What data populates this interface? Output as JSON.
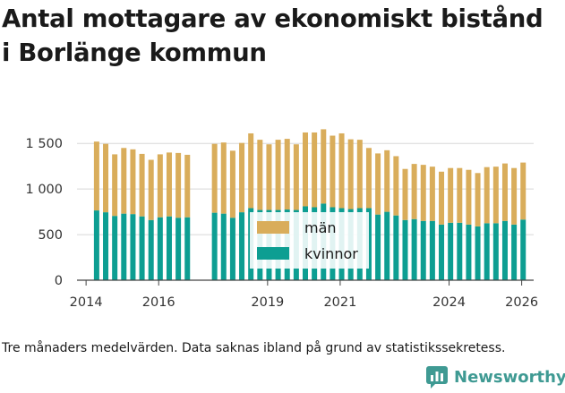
{
  "title_line1": "Antal mottagare av ekonomiskt bistånd",
  "title_line2": "i Borlänge kommun",
  "caption": "Tre månaders medelvärden. Data saknas ibland på grund av statistikssekretess.",
  "brand": {
    "name": "Newsworthy",
    "icon": "newsworthy-logo-icon"
  },
  "colors": {
    "man": "#d9ad5b",
    "kvinnor": "#0d9e92",
    "grid": "#d8d8d8",
    "axis": "#444444",
    "brand": "#3f9a93"
  },
  "chart_data": {
    "type": "bar",
    "stacked": true,
    "title": "Antal mottagare av ekonomiskt bistånd i Borlänge kommun",
    "xlabel": "",
    "ylabel": "",
    "ylim": [
      0,
      1600
    ],
    "xlim": [
      2013.75,
      2026.33
    ],
    "y_ticks": [
      0,
      500,
      1000,
      1500
    ],
    "y_tick_labels": [
      "0",
      "500",
      "1 000",
      "1 500"
    ],
    "x_ticks": [
      2014,
      2016,
      2019,
      2021,
      2024,
      2026
    ],
    "x_tick_labels": [
      "2014",
      "2016",
      "2019",
      "2021",
      "2024",
      "2026"
    ],
    "grid": true,
    "legend": {
      "position": "center-bottom",
      "entries": [
        "män",
        "kvinnor"
      ]
    },
    "x": [
      2014.29,
      2014.54,
      2014.79,
      2015.04,
      2015.29,
      2015.54,
      2015.79,
      2016.04,
      2016.29,
      2016.54,
      2016.79,
      2017.54,
      2017.79,
      2018.04,
      2018.29,
      2018.54,
      2018.79,
      2019.04,
      2019.29,
      2019.54,
      2019.79,
      2020.04,
      2020.29,
      2020.54,
      2020.79,
      2021.04,
      2021.29,
      2021.54,
      2021.79,
      2022.04,
      2022.29,
      2022.54,
      2022.79,
      2023.04,
      2023.29,
      2023.54,
      2023.79,
      2024.04,
      2024.29,
      2024.54,
      2024.79,
      2025.04,
      2025.29,
      2025.54,
      2025.79,
      2026.04
    ],
    "series": [
      {
        "name": "kvinnor",
        "values": [
          765,
          745,
          705,
          730,
          725,
          700,
          660,
          690,
          700,
          685,
          690,
          740,
          730,
          685,
          745,
          790,
          770,
          770,
          770,
          775,
          770,
          810,
          800,
          840,
          800,
          790,
          780,
          790,
          790,
          720,
          750,
          710,
          660,
          670,
          650,
          650,
          610,
          630,
          630,
          610,
          590,
          625,
          625,
          650,
          610,
          665
        ]
      },
      {
        "name": "män",
        "values": [
          755,
          750,
          675,
          720,
          710,
          685,
          660,
          690,
          700,
          710,
          685,
          755,
          780,
          735,
          760,
          820,
          770,
          720,
          770,
          775,
          720,
          810,
          820,
          815,
          785,
          820,
          765,
          750,
          660,
          670,
          675,
          650,
          560,
          605,
          615,
          595,
          580,
          600,
          600,
          600,
          585,
          615,
          620,
          630,
          620,
          625
        ]
      }
    ]
  }
}
